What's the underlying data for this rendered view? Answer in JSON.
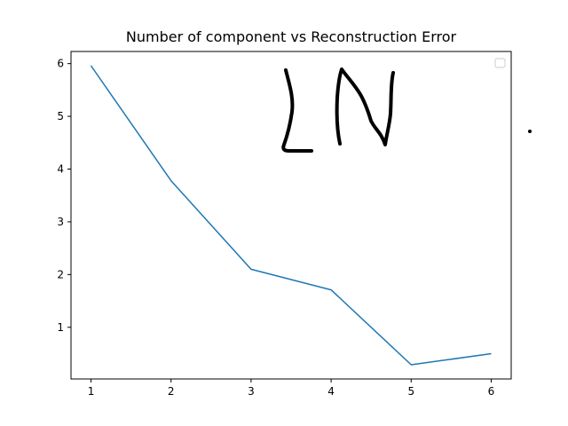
{
  "chart_data": {
    "type": "line",
    "title": "Number of component vs Reconstruction Error",
    "xlabel": "",
    "ylabel": "",
    "x": [
      1,
      2,
      3,
      4,
      5,
      6
    ],
    "series": [
      {
        "values": [
          5.96,
          3.78,
          2.1,
          1.71,
          0.29,
          0.5
        ],
        "color": "#1f77b4"
      }
    ],
    "xticks": [
      1,
      2,
      3,
      4,
      5,
      6
    ],
    "yticks": [
      1,
      2,
      3,
      4,
      5,
      6
    ],
    "xlim": [
      0.75,
      6.25
    ],
    "ylim": [
      0.02,
      6.23
    ],
    "grid": false,
    "legend": "upper right (empty)"
  },
  "annotations": {
    "handwriting": "LN",
    "handwriting_color": "#000000"
  }
}
